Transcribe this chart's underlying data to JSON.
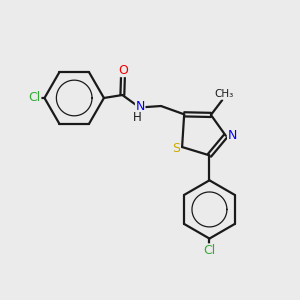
{
  "bg_color": "#ebebeb",
  "bond_color": "#1a1a1a",
  "bond_width": 1.6,
  "atom_colors": {
    "C": "#1a1a1a",
    "H": "#1a1a1a",
    "N": "#0000ee",
    "O": "#ee0000",
    "S": "#ccaa00",
    "Cl": "#33aa33"
  },
  "xlim": [
    0,
    10
  ],
  "ylim": [
    0,
    10
  ],
  "figsize": [
    3.0,
    3.0
  ],
  "dpi": 100
}
